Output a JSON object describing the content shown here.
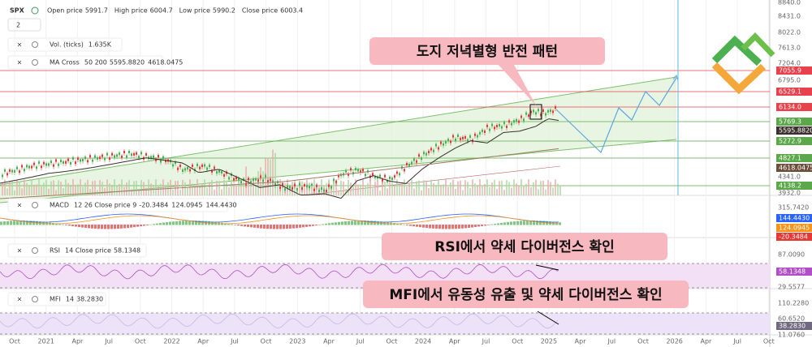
{
  "header": {
    "symbol": "SPX",
    "interval": "2",
    "ohlc": [
      {
        "label": "Open price",
        "value": "5991.7"
      },
      {
        "label": "High price",
        "value": "6004.7"
      },
      {
        "label": "Low price",
        "value": "5990.2"
      },
      {
        "label": "Close price",
        "value": "6003.4"
      }
    ]
  },
  "indicators": {
    "vol": {
      "name": "Vol. (ticks)",
      "values": [
        "1.635K"
      ]
    },
    "ma": {
      "name": "MA Cross",
      "params": "50 200",
      "values": [
        "5595.8820",
        "4618.0475"
      ]
    },
    "macd": {
      "name": "MACD",
      "params": "12 26 Close price 9",
      "values": [
        "-20.3484",
        "124.0945",
        "144.4430"
      ]
    },
    "rsi": {
      "name": "RSI",
      "params": "14 Close price",
      "values": [
        "58.1348"
      ]
    },
    "mfi": {
      "name": "MFI",
      "params": "14",
      "values": [
        "38.2830"
      ]
    }
  },
  "price_axis": [
    "8840.0",
    "8431.0",
    "8022.0",
    "7613.0",
    "7204.0",
    "6795.0",
    "4341.0",
    "3932.0"
  ],
  "price_tags": [
    {
      "text": "7055.9",
      "color": "#e8414b"
    },
    {
      "text": "6529.1",
      "color": "#e8414b"
    },
    {
      "text": "6134.0",
      "color": "#e8414b"
    },
    {
      "text": "5769.3",
      "color": "#5aa84a"
    },
    {
      "text": "5595.8820",
      "color": "#3b2f2f"
    },
    {
      "text": "5272.9",
      "color": "#5aa84a"
    },
    {
      "text": "4827.1",
      "color": "#5aa84a"
    },
    {
      "text": "4618.0475",
      "color": "#6b4f3a"
    },
    {
      "text": "4138.2",
      "color": "#5aa84a"
    }
  ],
  "macd_axis": [
    "315.7420"
  ],
  "macd_tags": [
    {
      "text": "144.4430",
      "color": "#2962ff"
    },
    {
      "text": "124.0945",
      "color": "#f7931a"
    },
    {
      "text": "-20.3484",
      "color": "#e53935"
    }
  ],
  "rsi_axis": [
    "87.0090",
    "29.5577"
  ],
  "rsi_tags": [
    {
      "text": "58.1348",
      "color": "#b04fc6"
    }
  ],
  "mfi_axis": [
    "110.2280",
    "60.6520",
    "11.0760"
  ],
  "mfi_tags": [
    {
      "text": "38.2830",
      "color": "#6f6a80"
    }
  ],
  "time_axis": [
    "Oct",
    "2021",
    "Apr",
    "Jul",
    "Oct",
    "2022",
    "Apr",
    "Jul",
    "Oct",
    "2023",
    "Apr",
    "Jul",
    "Oct",
    "2024",
    "Apr",
    "Jul",
    "Oct",
    "2025",
    "Apr",
    "Jul",
    "Oct",
    "2026",
    "Apr",
    "Jul",
    "Oct"
  ],
  "annotations": [
    "도지 저녁별형 반전 패턴",
    "RSI에서 약세 다이버전스 확인",
    "MFI에서 유동성 유출 및 약세 다이버전스 확인"
  ]
}
